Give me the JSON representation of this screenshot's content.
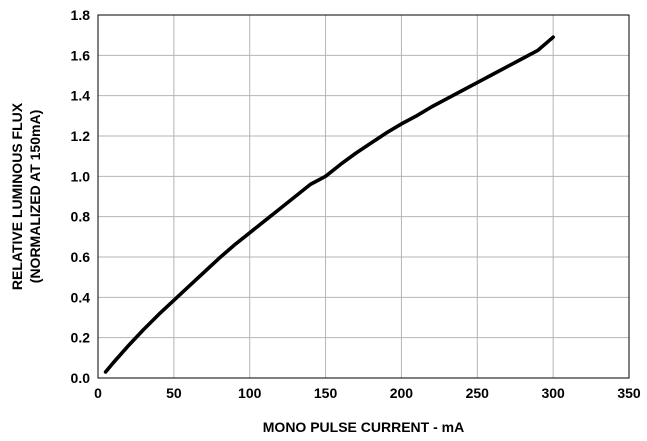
{
  "chart_data": {
    "type": "line",
    "xlabel": "MONO PULSE CURRENT - mA",
    "ylabel_line1": "RELATIVE LUMINOUS FLUX",
    "ylabel_line2": "(NORMALIZED AT 150mA)",
    "xlim": [
      0,
      350
    ],
    "ylim": [
      0,
      1.8
    ],
    "x_ticks": [
      "0",
      "50",
      "100",
      "150",
      "200",
      "250",
      "300",
      "350"
    ],
    "y_ticks": [
      "0.0",
      "0.2",
      "0.4",
      "0.6",
      "0.8",
      "1.0",
      "1.2",
      "1.4",
      "1.6",
      "1.8"
    ],
    "grid": true,
    "series": [
      {
        "color": "#000000",
        "x": [
          5,
          10,
          20,
          30,
          40,
          50,
          60,
          70,
          80,
          90,
          100,
          110,
          120,
          130,
          140,
          150,
          160,
          170,
          180,
          190,
          200,
          210,
          220,
          230,
          240,
          250,
          260,
          270,
          280,
          290,
          300
        ],
        "y": [
          0.03,
          0.075,
          0.16,
          0.24,
          0.315,
          0.385,
          0.455,
          0.525,
          0.595,
          0.66,
          0.72,
          0.78,
          0.84,
          0.9,
          0.96,
          1.0,
          1.06,
          1.115,
          1.165,
          1.215,
          1.26,
          1.3,
          1.345,
          1.385,
          1.425,
          1.465,
          1.505,
          1.545,
          1.585,
          1.625,
          1.69
        ]
      }
    ]
  }
}
